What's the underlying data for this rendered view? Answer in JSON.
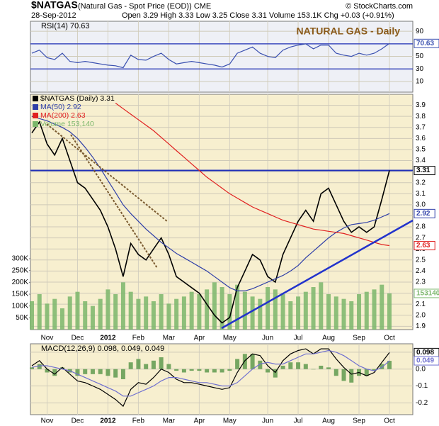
{
  "header": {
    "symbol": "$NATGAS",
    "description": "(Natural Gas - Spot Price (EOD)) CME",
    "copyright": "© StockCharts.com",
    "date": "28-Sep-2012",
    "quote": "Open 3.29 High 3.33 Low 3.25 Close 3.31 Volume 153.1K Chg +0.03 (+0.91%)"
  },
  "chart_data": [
    {
      "type": "line",
      "title": "RSI(14) 70.63",
      "annotation": "NATURAL GAS - Daily",
      "ylim": [
        -7,
        106
      ],
      "yticks": [
        10,
        30,
        50,
        70,
        90
      ],
      "grid": true,
      "reference_lines": [
        30,
        70
      ],
      "series": [
        {
          "name": "RSI(14)",
          "color": "#3a50b0",
          "tag": true,
          "values": [
            55,
            60,
            48,
            45,
            55,
            42,
            40,
            42,
            40,
            38,
            36,
            35,
            32,
            52,
            45,
            44,
            50,
            55,
            45,
            38,
            40,
            42,
            40,
            38,
            36,
            33,
            38,
            55,
            60,
            65,
            55,
            50,
            48,
            60,
            65,
            68,
            70,
            62,
            68,
            68,
            55,
            52,
            50,
            55,
            52,
            55,
            62,
            70.63
          ]
        }
      ]
    },
    {
      "type": "line",
      "categories": [
        null,
        null,
        "Nov",
        null,
        null,
        null,
        "Dec",
        null,
        null,
        null,
        "2012",
        null,
        null,
        null,
        "Feb",
        null,
        null,
        null,
        "Mar",
        null,
        null,
        null,
        "Apr",
        null,
        null,
        null,
        "May",
        null,
        null,
        null,
        null,
        "Jun",
        null,
        null,
        null,
        "Jul",
        null,
        null,
        null,
        "Aug",
        null,
        null,
        null,
        "Sep",
        null,
        null,
        null,
        "Oct"
      ],
      "ylim": [
        1.87,
        4.0
      ],
      "yticks": [
        1.9,
        {
          "value": 2,
          "label": "2.0"
        },
        2.1,
        2.2,
        2.3,
        2.4,
        2.5,
        2.6,
        2.7,
        2.8,
        2.9,
        {
          "value": 3,
          "label": "3.0"
        },
        3.1,
        3.2,
        3.3,
        3.4,
        3.5,
        3.6,
        3.7,
        3.8,
        3.9
      ],
      "y2lim": [
        0,
        300000
      ],
      "y2ticks": [
        {
          "value": 50000,
          "label": "50K"
        },
        {
          "value": 100000,
          "label": "100K"
        },
        {
          "value": 150000,
          "label": "150K"
        },
        {
          "value": 200000,
          "label": "200K"
        },
        {
          "value": 250000,
          "label": "250K"
        },
        {
          "value": 300000,
          "label": "300K"
        }
      ],
      "grid": true,
      "reference_lines": [
        3.31
      ],
      "series": [
        {
          "name": "$NATGAS (Daily) 3.31",
          "color": "#000000",
          "tag": true,
          "values": [
            3.65,
            3.75,
            3.55,
            3.45,
            3.6,
            3.4,
            3.2,
            3.15,
            3.05,
            2.95,
            2.8,
            2.6,
            2.35,
            2.65,
            2.55,
            2.5,
            2.6,
            2.7,
            2.55,
            2.35,
            2.3,
            2.25,
            2.2,
            2.1,
            2.0,
            1.93,
            1.98,
            2.25,
            2.4,
            2.55,
            2.5,
            2.35,
            2.3,
            2.55,
            2.7,
            2.85,
            2.95,
            2.85,
            3.1,
            3.15,
            3.0,
            2.85,
            2.75,
            2.8,
            2.75,
            2.8,
            3.05,
            3.31
          ]
        },
        {
          "name": "MA(50) 2.92",
          "color": "#2f3fa8",
          "tag": true,
          "values": [
            3.8,
            3.78,
            3.76,
            3.73,
            3.7,
            3.66,
            3.6,
            3.52,
            3.43,
            3.33,
            3.22,
            3.11,
            3.0,
            2.92,
            2.85,
            2.78,
            2.72,
            2.66,
            2.61,
            2.56,
            2.52,
            2.48,
            2.44,
            2.4,
            2.35,
            2.3,
            2.25,
            2.22,
            2.22,
            2.24,
            2.27,
            2.3,
            2.33,
            2.36,
            2.4,
            2.45,
            2.52,
            2.58,
            2.64,
            2.7,
            2.75,
            2.79,
            2.82,
            2.83,
            2.84,
            2.86,
            2.89,
            2.92
          ]
        },
        {
          "name": "MA(200) 2.63",
          "color": "#e02020",
          "tag": true,
          "values": [
            null,
            null,
            null,
            null,
            null,
            null,
            null,
            null,
            null,
            null,
            null,
            3.92,
            3.87,
            3.82,
            3.77,
            3.72,
            3.67,
            3.61,
            3.55,
            3.49,
            3.43,
            3.37,
            3.31,
            3.25,
            3.2,
            3.15,
            3.1,
            3.06,
            3.02,
            2.98,
            2.95,
            2.92,
            2.89,
            2.86,
            2.84,
            2.82,
            2.8,
            2.78,
            2.77,
            2.76,
            2.75,
            2.74,
            2.72,
            2.7,
            2.68,
            2.66,
            2.64,
            2.63
          ]
        },
        {
          "name": "Volume 153,140",
          "color": "#7bb66b",
          "type": "bar",
          "axis": "y2",
          "tag": true,
          "values": [
            120000,
            150000,
            110000,
            130000,
            90000,
            140000,
            160000,
            120000,
            100000,
            130000,
            170000,
            150000,
            200000,
            160000,
            130000,
            140000,
            120000,
            150000,
            110000,
            130000,
            140000,
            160000,
            150000,
            170000,
            200000,
            180000,
            150000,
            190000,
            160000,
            140000,
            130000,
            180000,
            170000,
            150000,
            120000,
            140000,
            160000,
            180000,
            200000,
            150000,
            140000,
            130000,
            120000,
            150000,
            160000,
            170000,
            190000,
            153140
          ]
        }
      ]
    },
    {
      "type": "line",
      "title": "MACD(12,26,9) 0.098, 0.049, 0.049",
      "ylim": [
        -0.27,
        0.15
      ],
      "yticks": [
        -0.2,
        -0.1,
        {
          "value": 0,
          "label": "0.0"
        },
        0.1
      ],
      "grid": true,
      "series": [
        {
          "name": "MACD",
          "color": "#000000",
          "tag": true,
          "values": [
            0.02,
            0.05,
            0.0,
            -0.03,
            0.01,
            -0.03,
            -0.07,
            -0.08,
            -0.1,
            -0.12,
            -0.15,
            -0.18,
            -0.22,
            -0.12,
            -0.08,
            -0.09,
            -0.05,
            0.0,
            -0.02,
            -0.06,
            -0.08,
            -0.08,
            -0.09,
            -0.1,
            -0.11,
            -0.12,
            -0.11,
            -0.02,
            0.05,
            0.09,
            0.08,
            0.02,
            -0.02,
            0.05,
            0.09,
            0.11,
            0.12,
            0.09,
            0.12,
            0.12,
            0.06,
            0.01,
            -0.03,
            -0.02,
            -0.04,
            -0.02,
            0.04,
            0.098
          ]
        },
        {
          "name": "Signal",
          "color": "#7070d0",
          "tag": true,
          "values": [
            0.01,
            0.02,
            0.02,
            0.01,
            0.0,
            -0.01,
            -0.03,
            -0.05,
            -0.07,
            -0.09,
            -0.11,
            -0.13,
            -0.16,
            -0.16,
            -0.14,
            -0.12,
            -0.1,
            -0.07,
            -0.05,
            -0.05,
            -0.06,
            -0.07,
            -0.08,
            -0.08,
            -0.09,
            -0.1,
            -0.1,
            -0.08,
            -0.04,
            0.0,
            0.03,
            0.04,
            0.03,
            0.03,
            0.05,
            0.07,
            0.09,
            0.09,
            0.1,
            0.11,
            0.1,
            0.08,
            0.05,
            0.02,
            0.0,
            -0.01,
            0.01,
            0.049
          ]
        },
        {
          "name": "Histogram",
          "color": "#5f9a4f",
          "type": "bar",
          "values": [
            0.01,
            0.03,
            -0.02,
            -0.04,
            0.01,
            -0.02,
            -0.04,
            -0.03,
            -0.03,
            -0.03,
            -0.04,
            -0.05,
            -0.06,
            0.04,
            0.06,
            0.03,
            0.05,
            0.07,
            0.03,
            -0.01,
            -0.02,
            -0.01,
            -0.01,
            -0.02,
            -0.02,
            -0.02,
            -0.01,
            0.06,
            0.09,
            0.09,
            0.05,
            -0.02,
            -0.05,
            0.02,
            0.04,
            0.04,
            0.03,
            0.0,
            0.02,
            0.01,
            -0.04,
            -0.07,
            -0.08,
            -0.04,
            -0.04,
            -0.01,
            0.03,
            0.049
          ]
        }
      ]
    }
  ]
}
